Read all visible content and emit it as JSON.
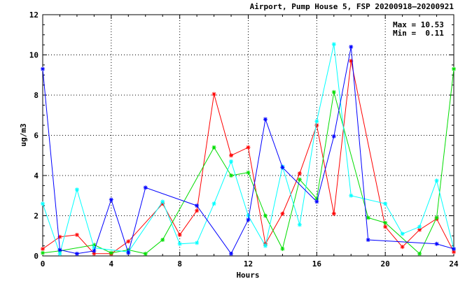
{
  "chart_data": {
    "type": "line",
    "title": "Airport, Pump House 5, FSP 20200918–20200921",
    "xlabel": "Hours",
    "ylabel": "ug/m3",
    "xlim": [
      0,
      24
    ],
    "ylim": [
      0,
      12
    ],
    "xticks": [
      0,
      4,
      8,
      12,
      16,
      20,
      24
    ],
    "yticks": [
      0,
      2,
      4,
      6,
      8,
      10,
      12
    ],
    "grid": true,
    "stats": {
      "max_label": "Max = 10.53",
      "min_label": "Min =  0.11"
    },
    "series": [
      {
        "color": "#ff0000",
        "marker": "asterisk",
        "points": [
          [
            0,
            0.35
          ],
          [
            1,
            0.95
          ],
          [
            2,
            1.05
          ],
          [
            3,
            0.12
          ],
          [
            4,
            0.11
          ],
          [
            5,
            0.72
          ],
          [
            7,
            2.6
          ],
          [
            8,
            1.05
          ],
          [
            9,
            2.25
          ],
          [
            10,
            8.05
          ],
          [
            11,
            5.0
          ],
          [
            12,
            5.4
          ],
          [
            13,
            0.6
          ],
          [
            14,
            2.1
          ],
          [
            15,
            4.1
          ],
          [
            16,
            6.5
          ],
          [
            17,
            2.1
          ],
          [
            18,
            9.7
          ],
          [
            20,
            1.45
          ],
          [
            21,
            0.45
          ],
          [
            22,
            1.3
          ],
          [
            23,
            1.85
          ],
          [
            24,
            0.2
          ]
        ]
      },
      {
        "color": "#00dd00",
        "marker": "asterisk",
        "points": [
          [
            0,
            0.15
          ],
          [
            1,
            0.25
          ],
          [
            3,
            0.55
          ],
          [
            4,
            0.15
          ],
          [
            5,
            0.3
          ],
          [
            6,
            0.11
          ],
          [
            7,
            0.8
          ],
          [
            10,
            5.4
          ],
          [
            11,
            4.0
          ],
          [
            12,
            4.15
          ],
          [
            13,
            2.0
          ],
          [
            14,
            0.35
          ],
          [
            15,
            3.8
          ],
          [
            16,
            2.85
          ],
          [
            17,
            8.15
          ],
          [
            19,
            1.9
          ],
          [
            20,
            1.65
          ],
          [
            22,
            0.11
          ],
          [
            23,
            1.9
          ],
          [
            24,
            9.3
          ]
        ]
      },
      {
        "color": "#00ffff",
        "marker": "asterisk",
        "points": [
          [
            0,
            2.6
          ],
          [
            1,
            0.11
          ],
          [
            2,
            3.3
          ],
          [
            3,
            0.4
          ],
          [
            5,
            0.2
          ],
          [
            7,
            2.7
          ],
          [
            8,
            0.6
          ],
          [
            9,
            0.65
          ],
          [
            10,
            2.6
          ],
          [
            11,
            4.7
          ],
          [
            12,
            2.0
          ],
          [
            13,
            0.5
          ],
          [
            14,
            4.45
          ],
          [
            15,
            1.55
          ],
          [
            16,
            6.7
          ],
          [
            17,
            10.53
          ],
          [
            18,
            3.0
          ],
          [
            20,
            2.6
          ],
          [
            21,
            1.1
          ],
          [
            22,
            1.45
          ],
          [
            23,
            3.75
          ],
          [
            24,
            0.35
          ]
        ]
      },
      {
        "color": "#0000ff",
        "marker": "asterisk",
        "points": [
          [
            0,
            9.3
          ],
          [
            1,
            0.3
          ],
          [
            2,
            0.11
          ],
          [
            3,
            0.25
          ],
          [
            4,
            2.8
          ],
          [
            5,
            0.15
          ],
          [
            6,
            3.4
          ],
          [
            9,
            2.5
          ],
          [
            11,
            0.11
          ],
          [
            12,
            1.8
          ],
          [
            13,
            6.8
          ],
          [
            14,
            4.4
          ],
          [
            16,
            2.7
          ],
          [
            17,
            5.95
          ],
          [
            18,
            10.4
          ],
          [
            19,
            0.8
          ],
          [
            23,
            0.6
          ],
          [
            24,
            0.35
          ]
        ]
      }
    ]
  }
}
